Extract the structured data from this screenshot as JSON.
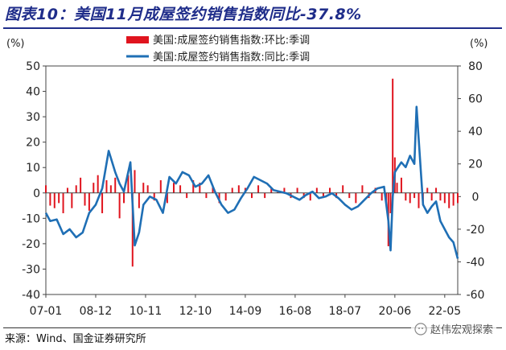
{
  "title": "图表10：美国11月成屋签约销售指数同比-37.8%",
  "source": "来源：Wind、国金证券研究所",
  "watermark": "赵伟宏观探索",
  "colors": {
    "title": "#1f2d8a",
    "bar": "#e0141e",
    "line": "#1f6fb5"
  },
  "chart_data": {
    "type": "bar+line",
    "left_axis": {
      "unit": "(%)",
      "ylim": [
        -40,
        50
      ],
      "ticks": [
        -40,
        -30,
        -20,
        -10,
        0,
        10,
        20,
        30,
        40,
        50
      ]
    },
    "right_axis": {
      "unit": "(%)",
      "ylim": [
        -60,
        80
      ],
      "ticks": [
        -60,
        -40,
        -20,
        0,
        20,
        40,
        60,
        80
      ]
    },
    "x_range": [
      "2007-01",
      "2022-11"
    ],
    "x_tick_labels": [
      "07-01",
      "08-12",
      "10-11",
      "12-10",
      "14-09",
      "16-08",
      "18-07",
      "20-06",
      "22-05"
    ],
    "legend": {
      "position": "top-center"
    },
    "series": [
      {
        "name": "美国:成屋签约销售指数:环比:季调",
        "type": "bar",
        "axis": "left",
        "x": [
          "2007-01",
          "2007-03",
          "2007-05",
          "2007-07",
          "2007-09",
          "2007-11",
          "2008-01",
          "2008-03",
          "2008-05",
          "2008-07",
          "2008-09",
          "2008-11",
          "2009-01",
          "2009-03",
          "2009-05",
          "2009-07",
          "2009-09",
          "2009-11",
          "2010-01",
          "2010-03",
          "2010-05",
          "2010-06",
          "2010-08",
          "2010-10",
          "2010-12",
          "2011-03",
          "2011-06",
          "2011-09",
          "2011-12",
          "2012-03",
          "2012-06",
          "2012-09",
          "2012-12",
          "2013-03",
          "2013-06",
          "2013-09",
          "2013-12",
          "2014-03",
          "2014-06",
          "2014-09",
          "2014-12",
          "2015-03",
          "2015-06",
          "2015-09",
          "2015-12",
          "2016-03",
          "2016-06",
          "2016-09",
          "2016-12",
          "2017-03",
          "2017-06",
          "2017-09",
          "2017-12",
          "2018-03",
          "2018-06",
          "2018-09",
          "2018-12",
          "2019-03",
          "2019-06",
          "2019-09",
          "2019-12",
          "2020-02",
          "2020-03",
          "2020-04",
          "2020-05",
          "2020-06",
          "2020-07",
          "2020-09",
          "2020-11",
          "2021-01",
          "2021-03",
          "2021-05",
          "2021-07",
          "2021-09",
          "2021-11",
          "2022-01",
          "2022-03",
          "2022-05",
          "2022-07",
          "2022-09",
          "2022-11"
        ],
        "values": [
          3,
          -5,
          -6,
          -4,
          -8,
          2,
          -6,
          3,
          6,
          -5,
          -7,
          4,
          7,
          -8,
          5,
          3,
          6,
          -10,
          -4,
          7,
          -29,
          9,
          -6,
          4,
          3,
          -3,
          5,
          -4,
          4,
          3,
          -2,
          5,
          4,
          -2,
          3,
          -4,
          -3,
          2,
          3,
          2,
          -2,
          3,
          -2,
          2,
          1,
          2,
          -2,
          2,
          -2,
          -3,
          2,
          -2,
          2,
          -2,
          3,
          -2,
          -4,
          3,
          -2,
          2,
          -3,
          -4,
          -21,
          -8,
          45,
          14,
          4,
          6,
          -3,
          -4,
          -2,
          -6,
          -5,
          2,
          -3,
          2,
          -3,
          -4,
          -6,
          -5,
          -4
        ]
      },
      {
        "name": "美国:成屋签约销售指数:同比:季调",
        "type": "line",
        "axis": "right",
        "x": [
          "2007-01",
          "2007-03",
          "2007-06",
          "2007-09",
          "2007-12",
          "2008-03",
          "2008-06",
          "2008-09",
          "2008-12",
          "2009-03",
          "2009-06",
          "2009-09",
          "2009-11",
          "2010-01",
          "2010-04",
          "2010-06",
          "2010-08",
          "2010-10",
          "2011-01",
          "2011-04",
          "2011-07",
          "2011-10",
          "2012-01",
          "2012-04",
          "2012-07",
          "2012-10",
          "2013-01",
          "2013-04",
          "2013-07",
          "2013-10",
          "2014-01",
          "2014-04",
          "2014-07",
          "2014-10",
          "2015-01",
          "2015-04",
          "2015-07",
          "2015-10",
          "2016-01",
          "2016-04",
          "2016-07",
          "2016-10",
          "2017-01",
          "2017-04",
          "2017-07",
          "2017-10",
          "2018-01",
          "2018-04",
          "2018-07",
          "2018-10",
          "2019-01",
          "2019-04",
          "2019-07",
          "2019-10",
          "2020-01",
          "2020-03",
          "2020-04",
          "2020-05",
          "2020-06",
          "2020-07",
          "2020-09",
          "2020-11",
          "2021-01",
          "2021-03",
          "2021-04",
          "2021-05",
          "2021-07",
          "2021-09",
          "2021-11",
          "2022-01",
          "2022-03",
          "2022-05",
          "2022-07",
          "2022-09",
          "2022-11"
        ],
        "values": [
          -10,
          -15,
          -14,
          -23,
          -20,
          -25,
          -22,
          -10,
          -5,
          5,
          28,
          15,
          8,
          3,
          21,
          -30,
          -22,
          -5,
          0,
          -2,
          -10,
          12,
          8,
          15,
          13,
          6,
          8,
          13,
          3,
          -5,
          -10,
          -8,
          -1,
          5,
          12,
          10,
          8,
          4,
          3,
          2,
          0,
          -2,
          1,
          3,
          -1,
          0,
          2,
          -1,
          -5,
          -8,
          -6,
          -2,
          2,
          5,
          6,
          -15,
          -33,
          0,
          15,
          17,
          21,
          18,
          25,
          20,
          55,
          35,
          -5,
          -10,
          -6,
          -3,
          -15,
          -20,
          -25,
          -28,
          -38
        ]
      }
    ]
  }
}
